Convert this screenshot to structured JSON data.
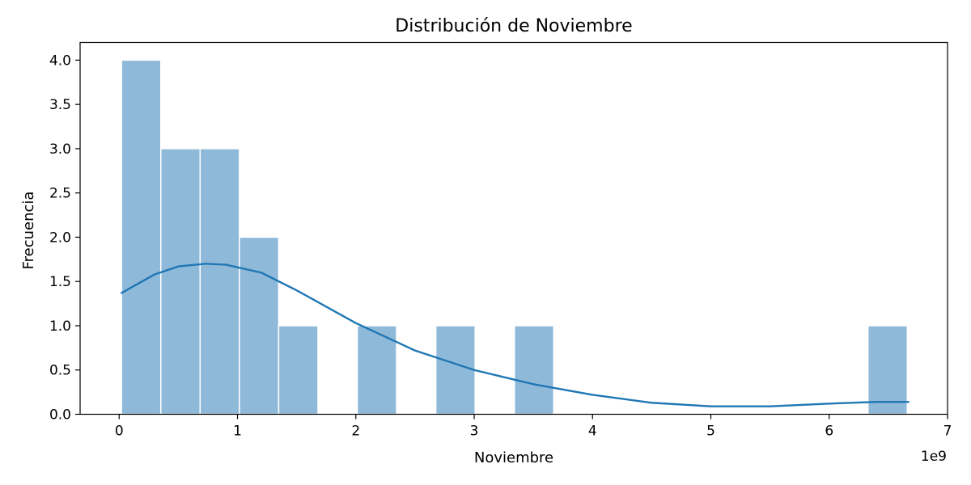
{
  "chart_data": {
    "type": "histogram",
    "title": "Distribución de Noviembre",
    "xlabel": "Noviembre",
    "ylabel": "Frecuencia",
    "x_offset_label": "1e9",
    "x_unit_scale": 1000000000,
    "xlim": [
      -0.33,
      7.0
    ],
    "ylim": [
      0,
      4.2
    ],
    "x_ticks": [
      0,
      1,
      2,
      3,
      4,
      5,
      6,
      7
    ],
    "x_tick_labels": [
      "0",
      "1",
      "2",
      "3",
      "4",
      "5",
      "6",
      "7"
    ],
    "y_ticks": [
      0,
      0.5,
      1,
      1.5,
      2,
      2.5,
      3,
      3.5,
      4
    ],
    "y_tick_labels": [
      "0.0",
      "0.5",
      "1.0",
      "1.5",
      "2.0",
      "2.5",
      "3.0",
      "3.5",
      "4.0"
    ],
    "bin_edges": [
      0.02,
      0.352,
      0.684,
      1.016,
      1.348,
      1.68,
      2.012,
      2.344,
      2.676,
      3.008,
      3.34,
      3.672,
      4.004,
      4.336,
      4.668,
      5.0,
      5.332,
      5.664,
      5.996,
      6.328,
      6.66
    ],
    "counts": [
      4,
      3,
      3,
      2,
      1,
      0,
      1,
      0,
      1,
      0,
      1,
      0,
      0,
      0,
      0,
      0,
      0,
      0,
      0,
      1
    ],
    "kde": {
      "x": [
        0.02,
        0.3,
        0.5,
        0.73,
        0.9,
        1.2,
        1.5,
        2.0,
        2.5,
        3.0,
        3.5,
        4.0,
        4.5,
        5.0,
        5.5,
        6.0,
        6.4,
        6.67
      ],
      "y": [
        1.37,
        1.58,
        1.67,
        1.7,
        1.69,
        1.6,
        1.4,
        1.03,
        0.72,
        0.5,
        0.34,
        0.22,
        0.13,
        0.09,
        0.09,
        0.12,
        0.14,
        0.14
      ]
    },
    "grid": false,
    "colors": {
      "bar_fill": "#8fb9d9",
      "bar_edge": "#ffffff",
      "kde_line": "#1f77b4"
    }
  }
}
